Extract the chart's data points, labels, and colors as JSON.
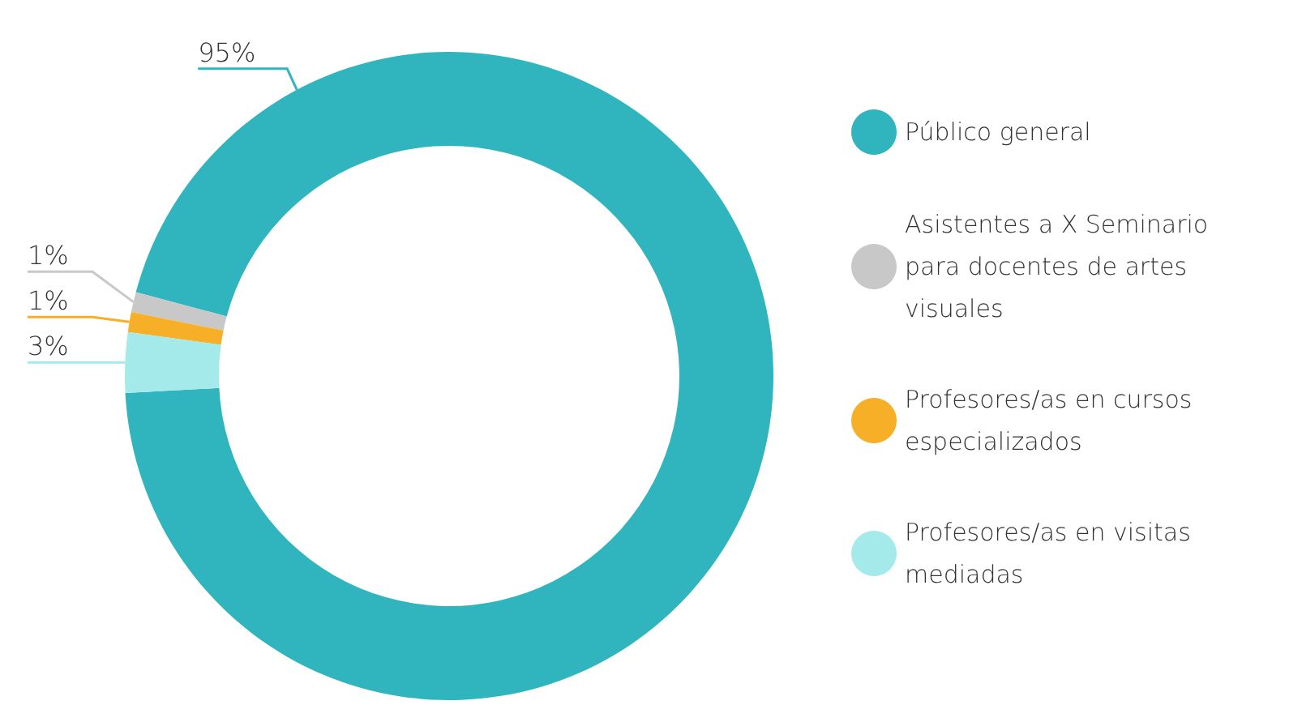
{
  "chart_data": {
    "type": "donut",
    "categories": [
      "Público general",
      "Asistentes a X Seminario para docentes de artes visuales",
      "Profesores/as en cursos especializados",
      "Profesores/as en visitas mediadas"
    ],
    "values": [
      95,
      1,
      1,
      3
    ],
    "colors": [
      "#30b5bf",
      "#c8c8c8",
      "#f6af26",
      "#a4eaea"
    ],
    "value_labels": [
      "95%",
      "1%",
      "1%",
      "3%"
    ],
    "legend": "right"
  }
}
